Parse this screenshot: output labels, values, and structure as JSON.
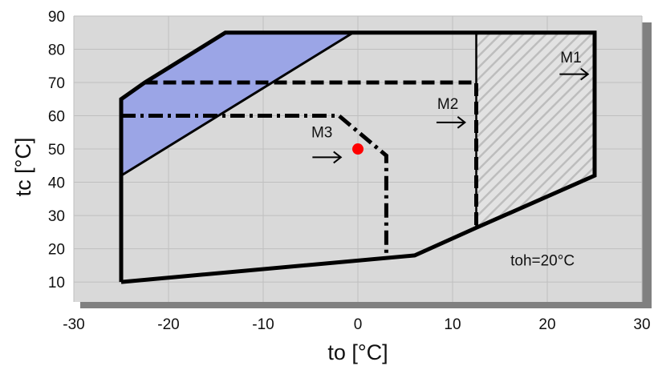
{
  "chart_data": {
    "type": "envelope",
    "xlabel": "to [°C]",
    "ylabel": "tc [°C]",
    "xlim": [
      -30,
      30
    ],
    "ylim": [
      4,
      90
    ],
    "x_ticks": [
      -30,
      -20,
      -10,
      0,
      10,
      20,
      30
    ],
    "y_ticks": [
      10,
      20,
      30,
      40,
      50,
      60,
      70,
      80,
      90
    ],
    "grid": true,
    "colors": {
      "plot_bg": "#d9d9d9",
      "shadow": "#808080",
      "blue_fill": "#9ba5e6",
      "hatch": "#bdbdbd",
      "point": "#ff0000"
    },
    "series": [
      {
        "name": "M1",
        "style": "solid",
        "points": [
          [
            -25,
            10
          ],
          [
            -25,
            65
          ],
          [
            -22.5,
            70
          ],
          [
            -14,
            85
          ],
          [
            25,
            85
          ],
          [
            25,
            42
          ],
          [
            12.5,
            26.3
          ],
          [
            6,
            18
          ],
          [
            -25,
            10
          ]
        ]
      },
      {
        "name": "M2",
        "style": "dashed",
        "points": [
          [
            -22.5,
            70
          ],
          [
            12.5,
            70
          ],
          [
            12.5,
            26.3
          ]
        ]
      },
      {
        "name": "M3",
        "style": "dash-dot",
        "points": [
          [
            -25,
            60
          ],
          [
            -2,
            60
          ],
          [
            3,
            48
          ],
          [
            3,
            17.5
          ]
        ]
      }
    ],
    "regions": [
      {
        "fill": "blue",
        "points": [
          [
            -25,
            42
          ],
          [
            -25,
            65
          ],
          [
            -22.5,
            70
          ],
          [
            -14,
            85
          ],
          [
            -0.5,
            85
          ]
        ]
      },
      {
        "fill": "hatch",
        "points": [
          [
            12.5,
            85
          ],
          [
            25,
            85
          ],
          [
            25,
            42
          ],
          [
            12.5,
            26.3
          ]
        ]
      }
    ],
    "marker_point": {
      "x": 0,
      "y": 50
    },
    "annotations": [
      {
        "text": "M1",
        "x": 22.5,
        "y": 76
      },
      {
        "text": "M2",
        "x": 9.5,
        "y": 62
      },
      {
        "text": "M3",
        "x": -3.8,
        "y": 53.5
      },
      {
        "text": "toh=20°C",
        "x": 19.5,
        "y": 15
      }
    ],
    "arrows": [
      {
        "x1": 21.3,
        "x2": 24.3,
        "y": 72.5
      },
      {
        "x1": 8.3,
        "x2": 11.3,
        "y": 58
      },
      {
        "x1": -4.8,
        "x2": -1.8,
        "y": 47.5
      }
    ]
  }
}
